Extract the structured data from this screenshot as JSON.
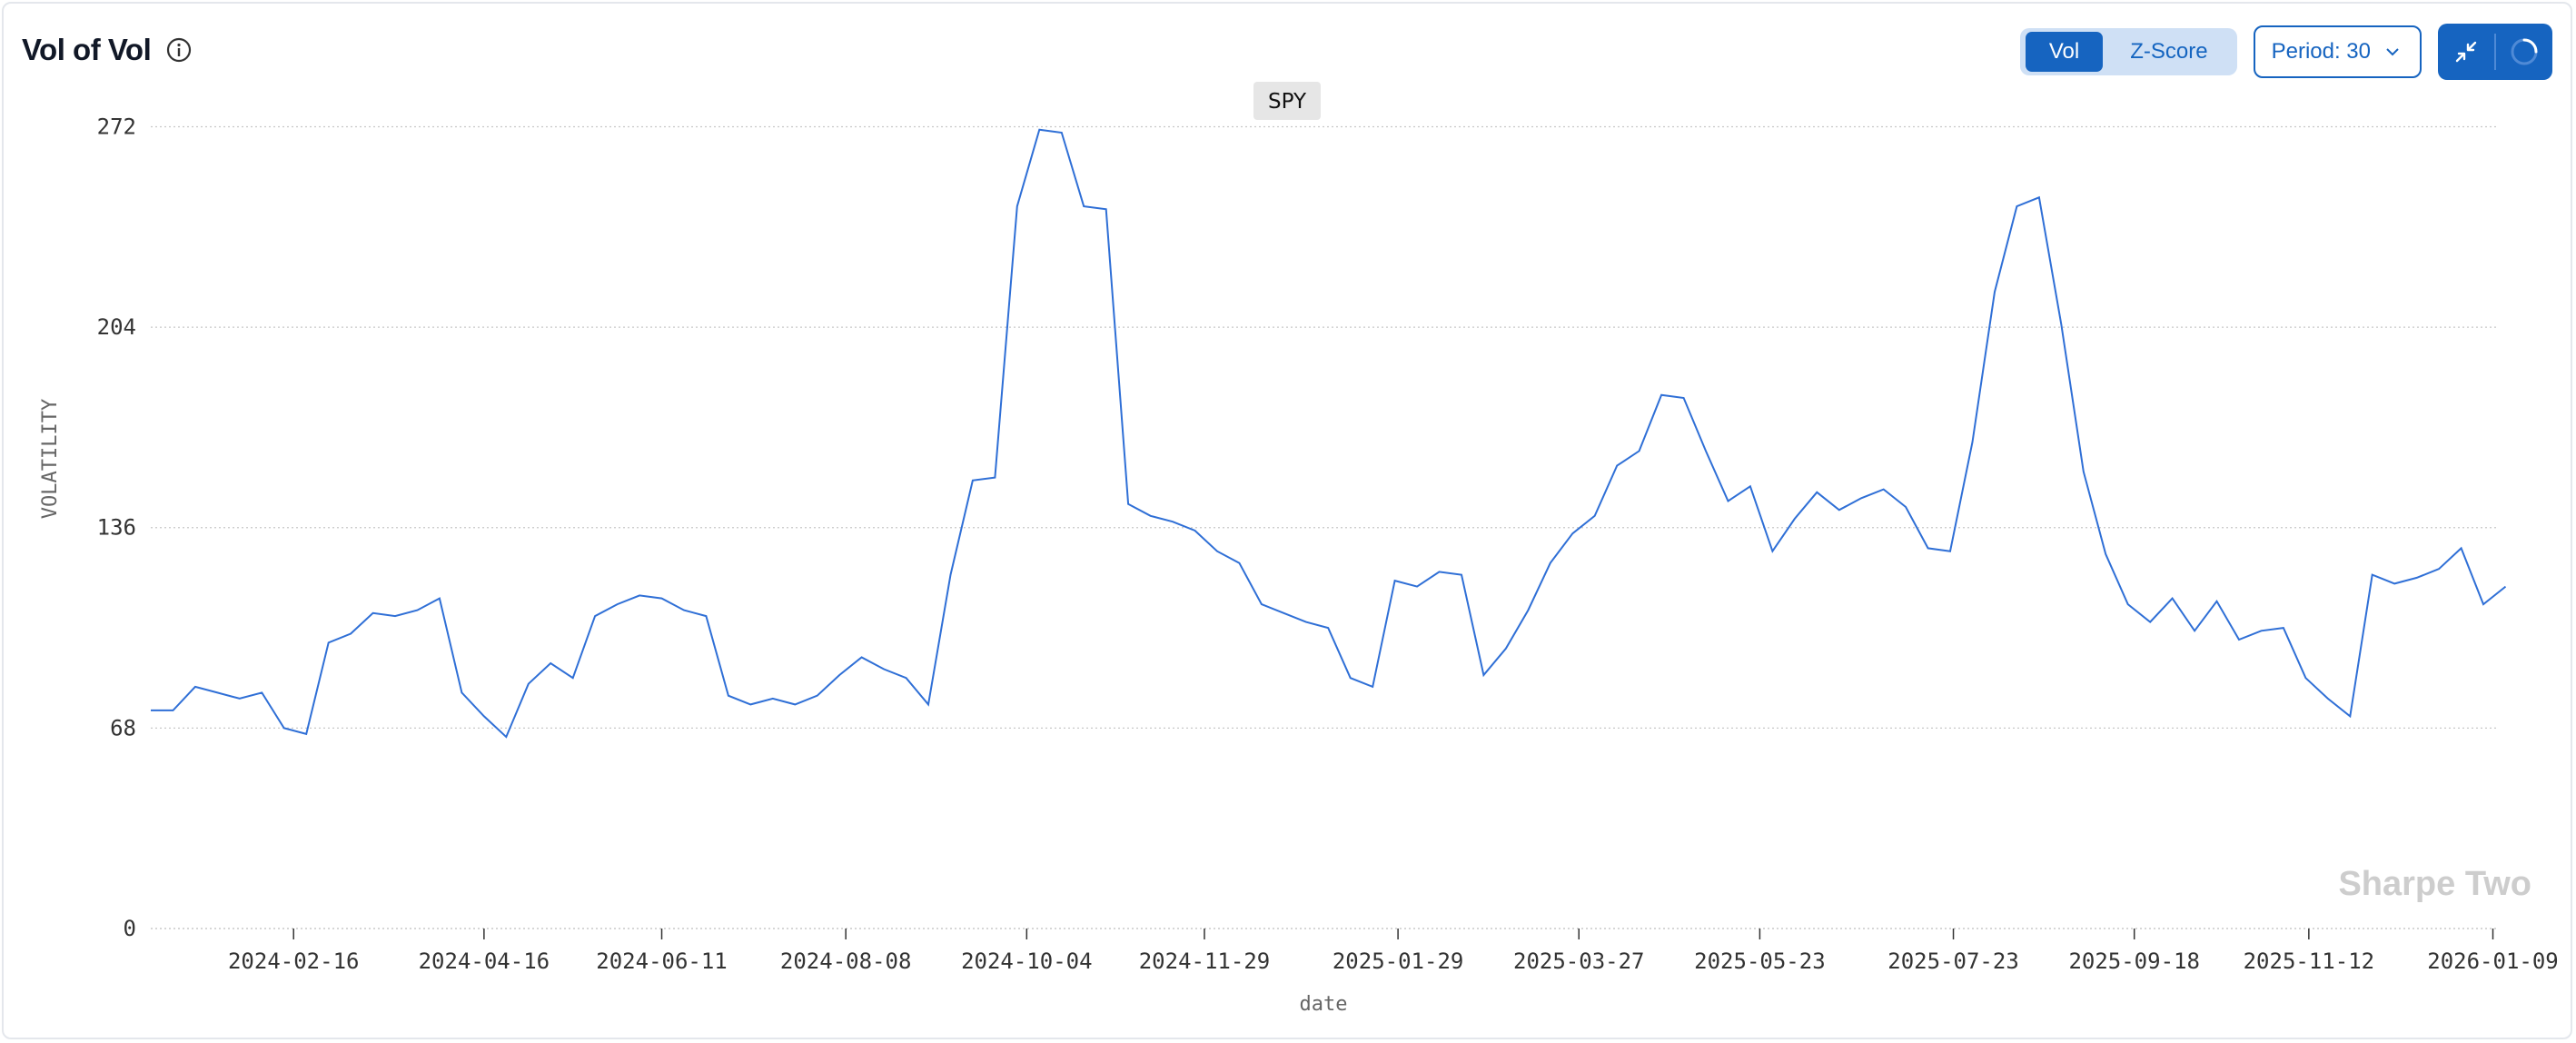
{
  "header": {
    "title": "Vol of Vol",
    "info_icon": "info-circle-icon"
  },
  "controls": {
    "toggle": {
      "options": [
        "Vol",
        "Z-Score"
      ],
      "selected": "Vol"
    },
    "period_label": "Period: 30",
    "collapse_icon": "collapse-arrows-icon",
    "refresh_icon": "loading-spinner-icon"
  },
  "colors": {
    "accent": "#1664c0",
    "line": "#2f6fd6",
    "grid": "#c8c8c8"
  },
  "watermark": "Sharpe Two",
  "chart_data": {
    "type": "line",
    "series": [
      {
        "name": "SPY",
        "x": [
          "2024-01-02",
          "2024-01-09",
          "2024-01-16",
          "2024-01-23",
          "2024-01-30",
          "2024-02-06",
          "2024-02-13",
          "2024-02-20",
          "2024-02-27",
          "2024-03-05",
          "2024-03-12",
          "2024-03-19",
          "2024-03-26",
          "2024-04-02",
          "2024-04-09",
          "2024-04-16",
          "2024-04-23",
          "2024-04-30",
          "2024-05-07",
          "2024-05-14",
          "2024-05-21",
          "2024-05-28",
          "2024-06-04",
          "2024-06-11",
          "2024-06-18",
          "2024-06-25",
          "2024-07-02",
          "2024-07-09",
          "2024-07-16",
          "2024-07-23",
          "2024-07-30",
          "2024-08-06",
          "2024-08-13",
          "2024-08-20",
          "2024-08-27",
          "2024-09-03",
          "2024-09-10",
          "2024-09-17",
          "2024-09-24",
          "2024-10-01",
          "2024-10-08",
          "2024-10-15",
          "2024-10-22",
          "2024-10-29",
          "2024-11-05",
          "2024-11-12",
          "2024-11-19",
          "2024-11-26",
          "2024-12-03",
          "2024-12-10",
          "2024-12-17",
          "2024-12-24",
          "2024-12-31",
          "2025-01-07",
          "2025-01-14",
          "2025-01-21",
          "2025-01-28",
          "2025-02-04",
          "2025-02-11",
          "2025-02-18",
          "2025-02-25",
          "2025-03-04",
          "2025-03-11",
          "2025-03-18",
          "2025-03-25",
          "2025-04-01",
          "2025-04-08",
          "2025-04-15",
          "2025-04-22",
          "2025-04-29",
          "2025-05-06",
          "2025-05-13",
          "2025-05-20",
          "2025-05-27",
          "2025-06-03",
          "2025-06-10",
          "2025-06-17",
          "2025-06-24",
          "2025-07-01",
          "2025-07-08",
          "2025-07-15",
          "2025-07-22",
          "2025-07-29",
          "2025-08-05",
          "2025-08-12",
          "2025-08-19",
          "2025-08-26",
          "2025-09-02",
          "2025-09-09",
          "2025-09-16",
          "2025-09-23",
          "2025-09-30",
          "2025-10-07",
          "2025-10-14",
          "2025-10-21",
          "2025-10-28",
          "2025-11-04",
          "2025-11-11",
          "2025-11-18",
          "2025-11-25",
          "2025-12-02",
          "2025-12-09",
          "2025-12-16",
          "2025-12-23",
          "2025-12-30",
          "2026-01-06",
          "2026-01-13"
        ],
        "values": [
          74,
          74,
          82,
          80,
          78,
          80,
          68,
          66,
          97,
          100,
          107,
          106,
          108,
          112,
          80,
          72,
          65,
          83,
          90,
          85,
          106,
          110,
          113,
          112,
          108,
          106,
          79,
          76,
          78,
          76,
          79,
          86,
          92,
          88,
          85,
          76,
          120,
          152,
          153,
          245,
          271,
          270,
          245,
          244,
          144,
          140,
          138,
          135,
          128,
          124,
          110,
          107,
          104,
          102,
          85,
          82,
          118,
          116,
          121,
          120,
          86,
          95,
          108,
          124,
          134,
          140,
          157,
          162,
          181,
          180,
          162,
          145,
          150,
          128,
          139,
          148,
          142,
          146,
          149,
          143,
          129,
          128,
          165,
          216,
          245,
          248,
          205,
          155,
          127,
          110,
          104,
          112,
          101,
          111,
          98,
          101,
          102,
          85,
          78,
          72,
          120,
          117,
          119,
          122,
          129,
          110,
          116
        ]
      }
    ],
    "x_ticks": [
      "2024-02-16",
      "2024-04-16",
      "2024-06-11",
      "2024-08-08",
      "2024-10-04",
      "2024-11-29",
      "2025-01-29",
      "2025-03-27",
      "2025-05-23",
      "2025-07-23",
      "2025-09-18",
      "2025-11-12",
      "2026-01-09"
    ],
    "y_ticks": [
      0,
      68,
      136,
      204,
      272
    ],
    "ylim": [
      0,
      278
    ],
    "xlim": [
      "2024-01-02",
      "2026-01-10"
    ],
    "xlabel": "date",
    "ylabel": "VOLATILITY",
    "grid": "horizontal dotted",
    "legend": "top-center badge"
  }
}
